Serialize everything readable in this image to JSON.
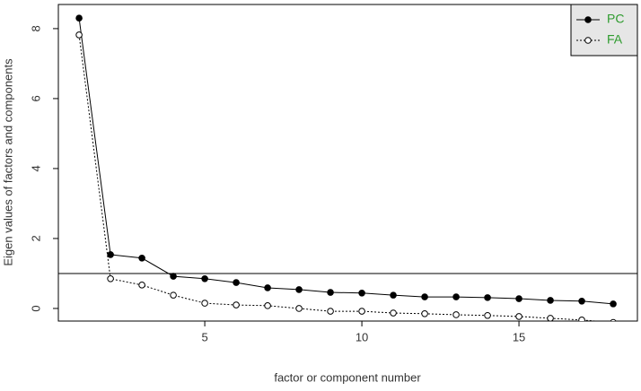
{
  "chart_data": {
    "type": "line",
    "xlabel": "factor or component number",
    "ylabel": "Eigen values of factors and components",
    "x": [
      1,
      2,
      3,
      4,
      5,
      6,
      7,
      8,
      9,
      10,
      11,
      12,
      13,
      14,
      15,
      16,
      17,
      18
    ],
    "series": [
      {
        "name": "PC",
        "color": "#000000",
        "style": "solid",
        "marker": "filled",
        "values": [
          8.3,
          1.54,
          1.44,
          0.92,
          0.85,
          0.74,
          0.59,
          0.54,
          0.46,
          0.44,
          0.38,
          0.33,
          0.33,
          0.31,
          0.28,
          0.23,
          0.21,
          0.13
        ]
      },
      {
        "name": "FA",
        "color": "#000000",
        "style": "dotted",
        "marker": "open",
        "values": [
          7.82,
          0.85,
          0.67,
          0.38,
          0.15,
          0.1,
          0.08,
          0.0,
          -0.08,
          -0.08,
          -0.13,
          -0.15,
          -0.18,
          -0.2,
          -0.23,
          -0.28,
          -0.33,
          -0.4
        ]
      }
    ],
    "hline": 1,
    "xlim": [
      0.34,
      18.77
    ],
    "ylim": [
      -0.36,
      8.69
    ],
    "xticks": [
      5,
      10,
      15
    ],
    "yticks": [
      0,
      2,
      4,
      6,
      8
    ],
    "legend": "top-right",
    "legend_text_color": "#2e9b2e"
  }
}
